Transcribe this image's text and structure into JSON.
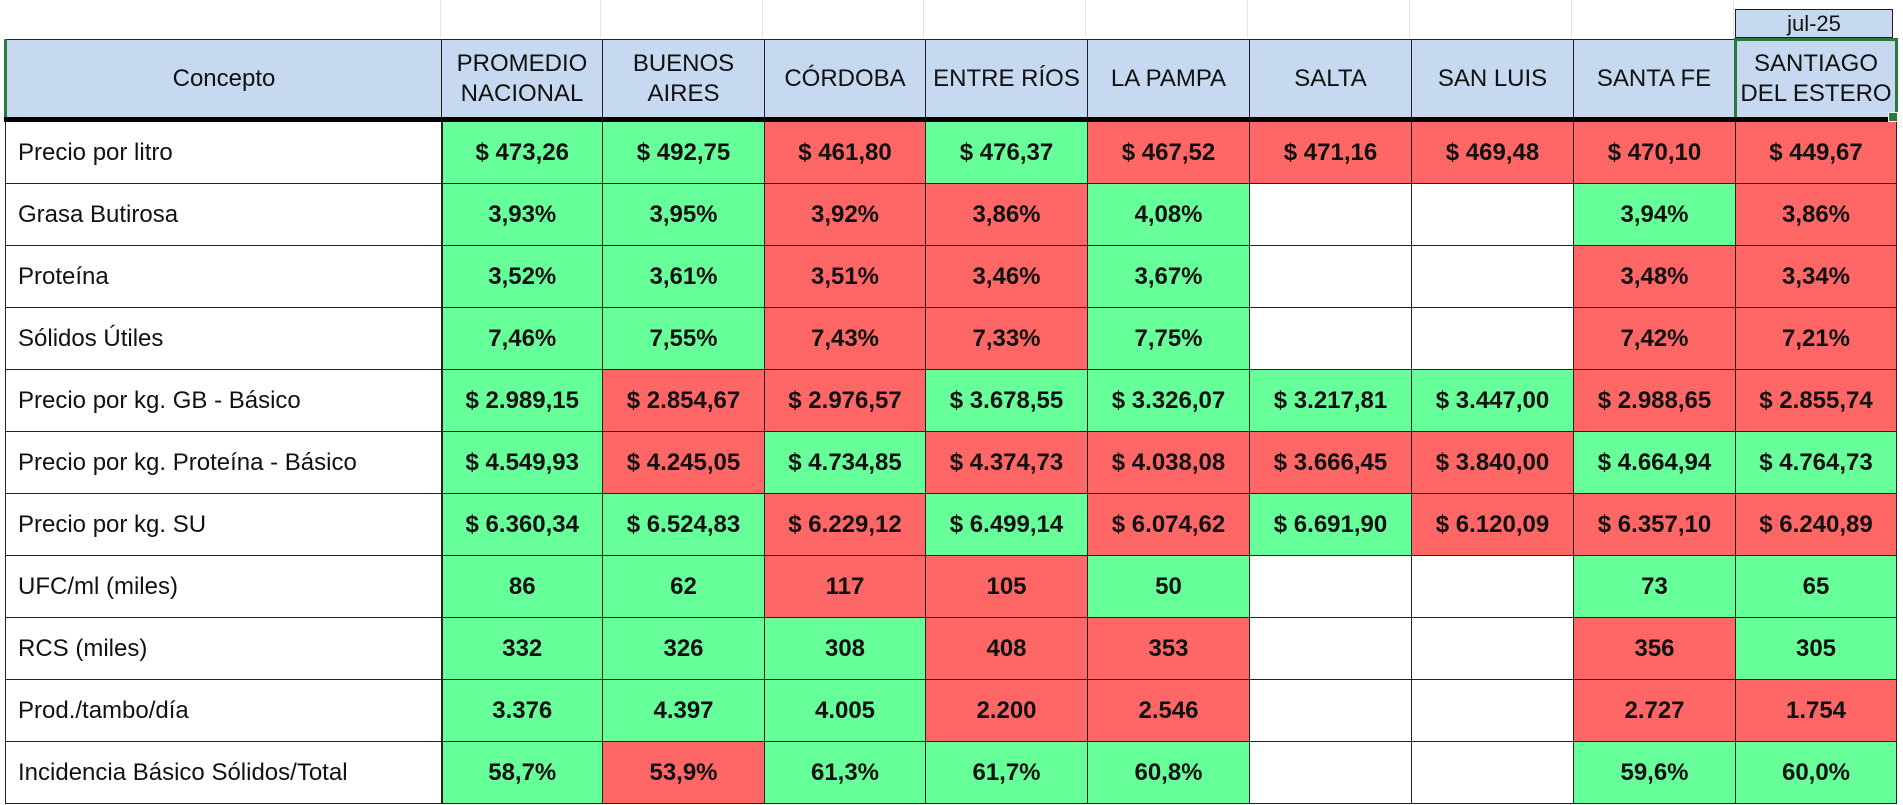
{
  "date_label": "jul-25",
  "headers": [
    "Concepto",
    "PROMEDIO NACIONAL",
    "BUENOS AIRES",
    "CÓRDOBA",
    "ENTRE RÍOS",
    "LA PAMPA",
    "SALTA",
    "SAN LUIS",
    "SANTA FE",
    "SANTIAGO DEL ESTERO"
  ],
  "colors": {
    "green": "#66ff99",
    "red": "#ff6666",
    "header": "#c6d9f1"
  },
  "rows": [
    {
      "label": "Precio por litro",
      "cells": [
        {
          "v": "$ 473,26",
          "c": "g"
        },
        {
          "v": "$ 492,75",
          "c": "g"
        },
        {
          "v": "$ 461,80",
          "c": "r"
        },
        {
          "v": "$ 476,37",
          "c": "g"
        },
        {
          "v": "$ 467,52",
          "c": "r"
        },
        {
          "v": "$ 471,16",
          "c": "r"
        },
        {
          "v": "$ 469,48",
          "c": "r"
        },
        {
          "v": "$ 470,10",
          "c": "r"
        },
        {
          "v": "$ 449,67",
          "c": "r"
        }
      ]
    },
    {
      "label": "Grasa Butirosa",
      "cells": [
        {
          "v": "3,93%",
          "c": "g"
        },
        {
          "v": "3,95%",
          "c": "g"
        },
        {
          "v": "3,92%",
          "c": "r"
        },
        {
          "v": "3,86%",
          "c": "r"
        },
        {
          "v": "4,08%",
          "c": "g"
        },
        {
          "v": "",
          "c": "w"
        },
        {
          "v": "",
          "c": "w"
        },
        {
          "v": "3,94%",
          "c": "g"
        },
        {
          "v": "3,86%",
          "c": "r"
        }
      ]
    },
    {
      "label": "Proteína",
      "cells": [
        {
          "v": "3,52%",
          "c": "g"
        },
        {
          "v": "3,61%",
          "c": "g"
        },
        {
          "v": "3,51%",
          "c": "r"
        },
        {
          "v": "3,46%",
          "c": "r"
        },
        {
          "v": "3,67%",
          "c": "g"
        },
        {
          "v": "",
          "c": "w"
        },
        {
          "v": "",
          "c": "w"
        },
        {
          "v": "3,48%",
          "c": "r"
        },
        {
          "v": "3,34%",
          "c": "r"
        }
      ]
    },
    {
      "label": "Sólidos Útiles",
      "cells": [
        {
          "v": "7,46%",
          "c": "g"
        },
        {
          "v": "7,55%",
          "c": "g"
        },
        {
          "v": "7,43%",
          "c": "r"
        },
        {
          "v": "7,33%",
          "c": "r"
        },
        {
          "v": "7,75%",
          "c": "g"
        },
        {
          "v": "",
          "c": "w"
        },
        {
          "v": "",
          "c": "w"
        },
        {
          "v": "7,42%",
          "c": "r"
        },
        {
          "v": "7,21%",
          "c": "r"
        }
      ]
    },
    {
      "label": "Precio por kg. GB - Básico",
      "cells": [
        {
          "v": "$ 2.989,15",
          "c": "g"
        },
        {
          "v": "$ 2.854,67",
          "c": "r"
        },
        {
          "v": "$ 2.976,57",
          "c": "r"
        },
        {
          "v": "$ 3.678,55",
          "c": "g"
        },
        {
          "v": "$ 3.326,07",
          "c": "g"
        },
        {
          "v": "$ 3.217,81",
          "c": "g"
        },
        {
          "v": "$ 3.447,00",
          "c": "g"
        },
        {
          "v": "$ 2.988,65",
          "c": "r"
        },
        {
          "v": "$ 2.855,74",
          "c": "r"
        }
      ]
    },
    {
      "label": "Precio por kg. Proteína - Básico",
      "cells": [
        {
          "v": "$ 4.549,93",
          "c": "g"
        },
        {
          "v": "$ 4.245,05",
          "c": "r"
        },
        {
          "v": "$ 4.734,85",
          "c": "g"
        },
        {
          "v": "$ 4.374,73",
          "c": "r"
        },
        {
          "v": "$ 4.038,08",
          "c": "r"
        },
        {
          "v": "$ 3.666,45",
          "c": "r"
        },
        {
          "v": "$ 3.840,00",
          "c": "r"
        },
        {
          "v": "$ 4.664,94",
          "c": "g"
        },
        {
          "v": "$ 4.764,73",
          "c": "g"
        }
      ]
    },
    {
      "label": "Precio por kg. SU",
      "cells": [
        {
          "v": "$ 6.360,34",
          "c": "g"
        },
        {
          "v": "$ 6.524,83",
          "c": "g"
        },
        {
          "v": "$ 6.229,12",
          "c": "r"
        },
        {
          "v": "$ 6.499,14",
          "c": "g"
        },
        {
          "v": "$ 6.074,62",
          "c": "r"
        },
        {
          "v": "$ 6.691,90",
          "c": "g"
        },
        {
          "v": "$ 6.120,09",
          "c": "r"
        },
        {
          "v": "$ 6.357,10",
          "c": "r"
        },
        {
          "v": "$ 6.240,89",
          "c": "r"
        }
      ]
    },
    {
      "label": "UFC/ml (miles)",
      "cells": [
        {
          "v": "86",
          "c": "g"
        },
        {
          "v": "62",
          "c": "g"
        },
        {
          "v": "117",
          "c": "r"
        },
        {
          "v": "105",
          "c": "r"
        },
        {
          "v": "50",
          "c": "g"
        },
        {
          "v": "",
          "c": "w"
        },
        {
          "v": "",
          "c": "w"
        },
        {
          "v": "73",
          "c": "g"
        },
        {
          "v": "65",
          "c": "g"
        }
      ]
    },
    {
      "label": "RCS (miles)",
      "cells": [
        {
          "v": "332",
          "c": "g"
        },
        {
          "v": "326",
          "c": "g"
        },
        {
          "v": "308",
          "c": "g"
        },
        {
          "v": "408",
          "c": "r"
        },
        {
          "v": "353",
          "c": "r"
        },
        {
          "v": "",
          "c": "w"
        },
        {
          "v": "",
          "c": "w"
        },
        {
          "v": "356",
          "c": "r"
        },
        {
          "v": "305",
          "c": "g"
        }
      ]
    },
    {
      "label": "Prod./tambo/día",
      "cells": [
        {
          "v": "3.376",
          "c": "g"
        },
        {
          "v": "4.397",
          "c": "g"
        },
        {
          "v": "4.005",
          "c": "g"
        },
        {
          "v": "2.200",
          "c": "r"
        },
        {
          "v": "2.546",
          "c": "r"
        },
        {
          "v": "",
          "c": "w"
        },
        {
          "v": "",
          "c": "w"
        },
        {
          "v": "2.727",
          "c": "r"
        },
        {
          "v": "1.754",
          "c": "r"
        }
      ]
    },
    {
      "label": "Incidencia Básico Sólidos/Total",
      "cells": [
        {
          "v": "58,7%",
          "c": "g"
        },
        {
          "v": "53,9%",
          "c": "r"
        },
        {
          "v": "61,3%",
          "c": "g"
        },
        {
          "v": "61,7%",
          "c": "g"
        },
        {
          "v": "60,8%",
          "c": "g"
        },
        {
          "v": "",
          "c": "w"
        },
        {
          "v": "",
          "c": "w"
        },
        {
          "v": "59,6%",
          "c": "g"
        },
        {
          "v": "60,0%",
          "c": "g"
        }
      ]
    }
  ]
}
